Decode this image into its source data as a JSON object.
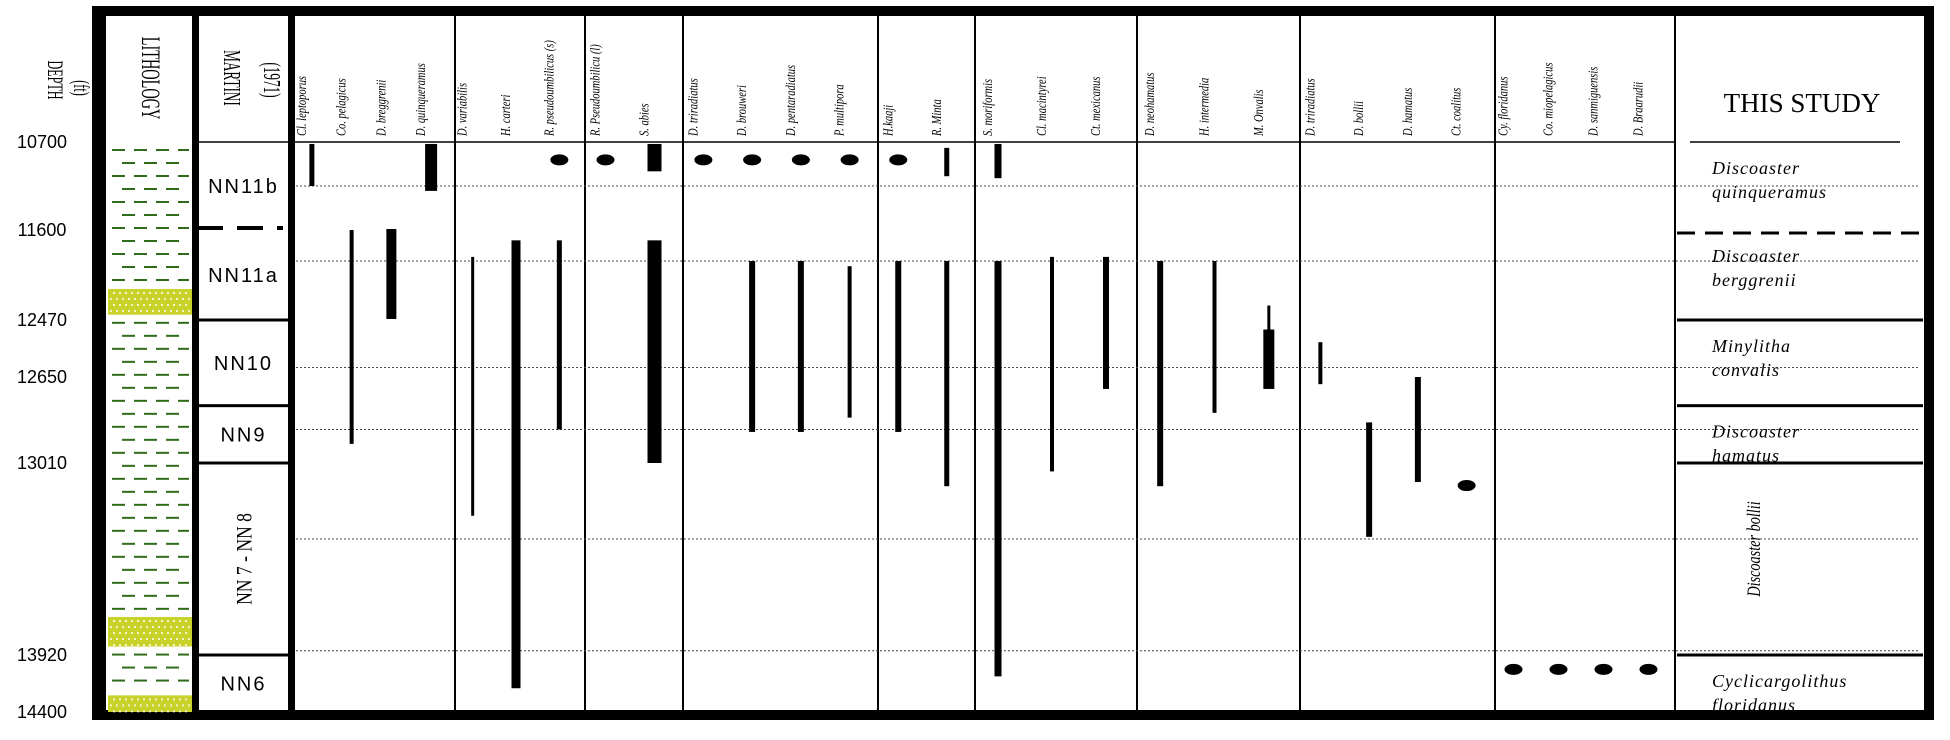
{
  "header": {
    "depth_label": "DEPTH",
    "depth_unit": "(ft)",
    "lithology_label": "LITHOLOGY",
    "martini_label": "MARTINI",
    "martini_year": "(1971)",
    "study_label": "THIS STUDY"
  },
  "colors": {
    "dash": "#2e6b1a",
    "cross_bg": "#c8d22a",
    "ink": "#000000"
  },
  "depth_ticks": [
    {
      "label": "10700",
      "depth": 10700
    },
    {
      "label": "11600",
      "depth": 11600
    },
    {
      "label": "12470",
      "depth": 12470
    },
    {
      "label": "12650",
      "depth": 12650
    },
    {
      "label": "13010",
      "depth": 13010
    },
    {
      "label": "13920",
      "depth": 13920
    },
    {
      "label": "14400",
      "depth": 14400
    }
  ],
  "lithology_units": [
    {
      "type": "shale",
      "top": 10700,
      "bottom": 12170
    },
    {
      "type": "limestone",
      "top": 12170,
      "bottom": 12420
    },
    {
      "type": "shale",
      "top": 12420,
      "bottom": 13740
    },
    {
      "type": "limestone",
      "top": 13740,
      "bottom": 13880
    },
    {
      "type": "shale",
      "top": 13880,
      "bottom": 14260
    },
    {
      "type": "limestone",
      "top": 14260,
      "bottom": 14400
    }
  ],
  "martini_zones": [
    {
      "name": "NN11b",
      "top": 10700,
      "bottom": 11600,
      "vertical": false
    },
    {
      "name": "NN11a",
      "top": 11600,
      "bottom": 12470,
      "vertical": false
    },
    {
      "name": "NN10",
      "top": 12470,
      "bottom": 12770,
      "vertical": false
    },
    {
      "name": "NN9",
      "top": 12770,
      "bottom": 13010,
      "vertical": false
    },
    {
      "name": "NN 7 - NN 8",
      "top": 13010,
      "bottom": 13920,
      "vertical": true
    },
    {
      "name": "NN6",
      "top": 13920,
      "bottom": 14400,
      "vertical": false
    }
  ],
  "martini_dashed_boundary": 11600,
  "study_zones": [
    {
      "lines": [
        "Discoaster",
        "quinqueramus"
      ],
      "top": 10700,
      "bottom": 11600,
      "vertical": false
    },
    {
      "lines": [
        "Discoaster",
        "berggrenii"
      ],
      "top": 11600,
      "bottom": 12470,
      "vertical": false
    },
    {
      "lines": [
        "Minylitha",
        "convalis"
      ],
      "top": 12470,
      "bottom": 12770,
      "vertical": false
    },
    {
      "lines": [
        "Discoaster",
        "hamatus"
      ],
      "top": 12770,
      "bottom": 13010,
      "vertical": false
    },
    {
      "lines": [
        "Discoaster bollii"
      ],
      "top": 13010,
      "bottom": 13920,
      "vertical": true
    },
    {
      "lines": [
        "Cyclicargolithus",
        "floridanus"
      ],
      "top": 13920,
      "bottom": 14400,
      "vertical": false
    }
  ],
  "study_dashed_boundary": 11600,
  "guide_depths": [
    11150,
    11900,
    12620,
    12870,
    13370,
    13900
  ],
  "species_groups": [
    {
      "species": [
        {
          "name": "Cl. leptoporus",
          "range": [
            10720,
            11150
          ],
          "width": 5
        },
        {
          "name": "Co. pelagicus",
          "range": [
            11600,
            12930
          ],
          "width": 4
        },
        {
          "name": "D. breggrenii",
          "range": [
            11590,
            12460
          ],
          "width": 10
        },
        {
          "name": "D. quinqueramus",
          "range": [
            10720,
            11200
          ],
          "width": 12
        }
      ]
    },
    {
      "species": [
        {
          "name": "D. variabilis",
          "range": [
            11860,
            13260
          ],
          "width": 3
        },
        {
          "name": "H. carteri",
          "range": [
            11700,
            14200
          ],
          "width": 9
        },
        {
          "name": "R. pseudoumbilicus (s)",
          "range": [
            11700,
            12870
          ],
          "width": 5,
          "dot": 10760
        }
      ]
    },
    {
      "species": [
        {
          "name": "R. Pseudoumbilicu (l)",
          "range": null,
          "dot": 10760
        },
        {
          "name": "S. abies",
          "range": [
            10720,
            11000
          ],
          "width": 14,
          "range2": [
            11700,
            13010
          ]
        }
      ]
    },
    {
      "species": [
        {
          "name": "D. triradiatus",
          "range": null,
          "dot": 10760
        },
        {
          "name": "D. brouweri",
          "range": [
            11900,
            12880
          ],
          "width": 6,
          "dot": 10760
        },
        {
          "name": "D. pentaradiatus",
          "range": [
            11900,
            12880
          ],
          "width": 6,
          "dot": 10760
        },
        {
          "name": "P. multipora",
          "range": [
            11950,
            12820
          ],
          "width": 4,
          "dot": 10760
        }
      ]
    },
    {
      "species": [
        {
          "name": "H.kaaji",
          "range": [
            11900,
            12880
          ],
          "width": 6,
          "dot": 10760
        },
        {
          "name": "R. Minta",
          "range": [
            10760,
            11050
          ],
          "width": 5,
          "range2": [
            11900,
            13120
          ]
        }
      ]
    },
    {
      "species": [
        {
          "name": "S. moriformis",
          "range": [
            10720,
            11070
          ],
          "width": 7,
          "range2": [
            11900,
            14100
          ]
        },
        {
          "name": "Cl. macintyrei",
          "range": [
            11860,
            13050
          ],
          "width": 4
        },
        {
          "name": "Ct. mexicanus",
          "range": [
            11860,
            12700
          ],
          "width": 6
        }
      ]
    },
    {
      "species": [
        {
          "name": "D. neohamatus",
          "range": [
            11900,
            13120
          ],
          "width": 6
        },
        {
          "name": "H. intermedia",
          "range": [
            11900,
            12800
          ],
          "width": 4
        },
        {
          "name": "M. Onvalis",
          "range": [
            12330,
            12500
          ],
          "width": 3,
          "range2": [
            12500,
            12700
          ],
          "width2": 11
        }
      ]
    },
    {
      "species": [
        {
          "name": "D. triradiatus",
          "range": [
            12540,
            12680
          ],
          "width": 4
        },
        {
          "name": "D. bollii",
          "range": [
            12840,
            13360
          ],
          "width": 6
        },
        {
          "name": "D. hamatus",
          "range": [
            12650,
            13100
          ],
          "width": 6
        },
        {
          "name": "Ct. coalitus",
          "range": null,
          "dot": 13060
        }
      ]
    },
    {
      "species": [
        {
          "name": "Cy. floridanus",
          "range": null,
          "dot": 13940
        },
        {
          "name": "Co. miopelagicus",
          "range": null,
          "dot": 13940
        },
        {
          "name": "D. sanmiguensis",
          "range": null,
          "dot": 13940
        },
        {
          "name": "D. Braarudii",
          "range": null,
          "dot": 13940
        }
      ]
    }
  ]
}
